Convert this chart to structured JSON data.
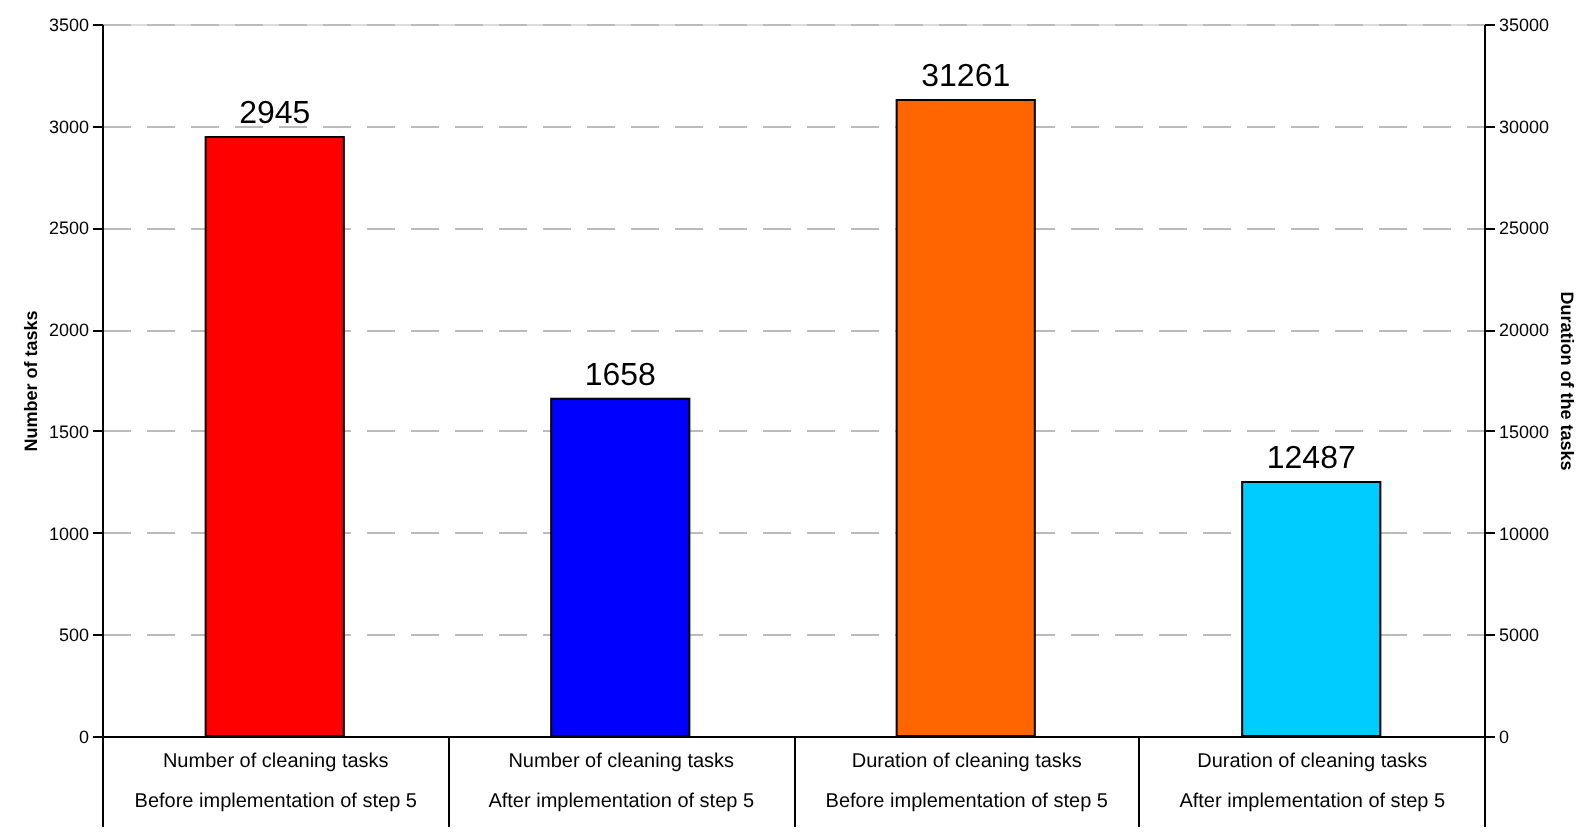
{
  "chart_data": {
    "type": "bar",
    "ylabel": "Number of tasks",
    "y2label": "Duration of the tasks",
    "categories": [
      "Number of cleaning tasks\nBefore implementation of step 5",
      "Number of cleaning tasks\nAfter implementation of step 5",
      "Duration of cleaning tasks\nBefore implementation of step 5",
      "Duration of cleaning tasks\nAfter implementation of step 5"
    ],
    "series": [
      {
        "values": [
          2945,
          1658,
          null,
          null
        ],
        "colors": [
          "#ff0000",
          "#0000ff",
          "#ff6600",
          "#00ccff"
        ]
      },
      {
        "axis": "y2",
        "values": [
          null,
          null,
          31261,
          12487
        ],
        "colors": [
          "#ff0000",
          "#0000ff",
          "#ff6600",
          "#00ccff"
        ]
      }
    ],
    "ylim": [
      0,
      3500
    ],
    "yticks": [
      0,
      500,
      1000,
      1500,
      2000,
      2500,
      3000,
      3500
    ],
    "y2lim": [
      0,
      35000
    ],
    "y2ticks": [
      0,
      5000,
      10000,
      15000,
      20000,
      25000,
      30000,
      35000
    ],
    "grid": "y",
    "data_labels": true
  }
}
